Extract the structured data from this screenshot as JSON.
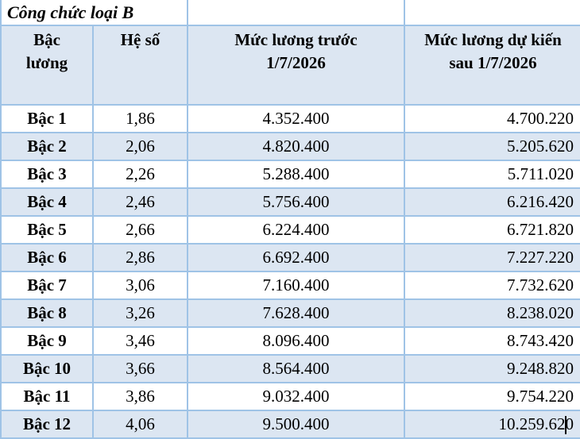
{
  "title": "Công chức loại B",
  "colors": {
    "row_band": "#dce6f2",
    "border": "#9fc3e6",
    "text": "#000000"
  },
  "columns": {
    "grade": "Bậc\nlương",
    "coefficient": "Hệ số",
    "before": "Mức lương trước\n1/7/2026",
    "after": "Mức lương dự kiến\nsau 1/7/2026"
  },
  "rows": [
    {
      "grade": "Bậc 1",
      "coefficient": "1,86",
      "before": "4.352.400",
      "after": "4.700.220"
    },
    {
      "grade": "Bậc 2",
      "coefficient": "2,06",
      "before": "4.820.400",
      "after": "5.205.620"
    },
    {
      "grade": "Bậc 3",
      "coefficient": "2,26",
      "before": "5.288.400",
      "after": "5.711.020"
    },
    {
      "grade": "Bậc 4",
      "coefficient": "2,46",
      "before": "5.756.400",
      "after": "6.216.420"
    },
    {
      "grade": "Bậc 5",
      "coefficient": "2,66",
      "before": "6.224.400",
      "after": "6.721.820"
    },
    {
      "grade": "Bậc 6",
      "coefficient": "2,86",
      "before": "6.692.400",
      "after": "7.227.220"
    },
    {
      "grade": "Bậc 7",
      "coefficient": "3,06",
      "before": "7.160.400",
      "after": "7.732.620"
    },
    {
      "grade": "Bậc 8",
      "coefficient": "3,26",
      "before": "7.628.400",
      "after": "8.238.020"
    },
    {
      "grade": "Bậc 9",
      "coefficient": "3,46",
      "before": "8.096.400",
      "after": "8.743.420"
    },
    {
      "grade": "Bậc 10",
      "coefficient": "3,66",
      "before": "8.564.400",
      "after": "9.248.820"
    },
    {
      "grade": "Bậc 11",
      "coefficient": "3,86",
      "before": "9.032.400",
      "after": "9.754.220"
    },
    {
      "grade": "Bậc 12",
      "coefficient": "4,06",
      "before": "9.500.400",
      "after": "10.259.620"
    }
  ]
}
